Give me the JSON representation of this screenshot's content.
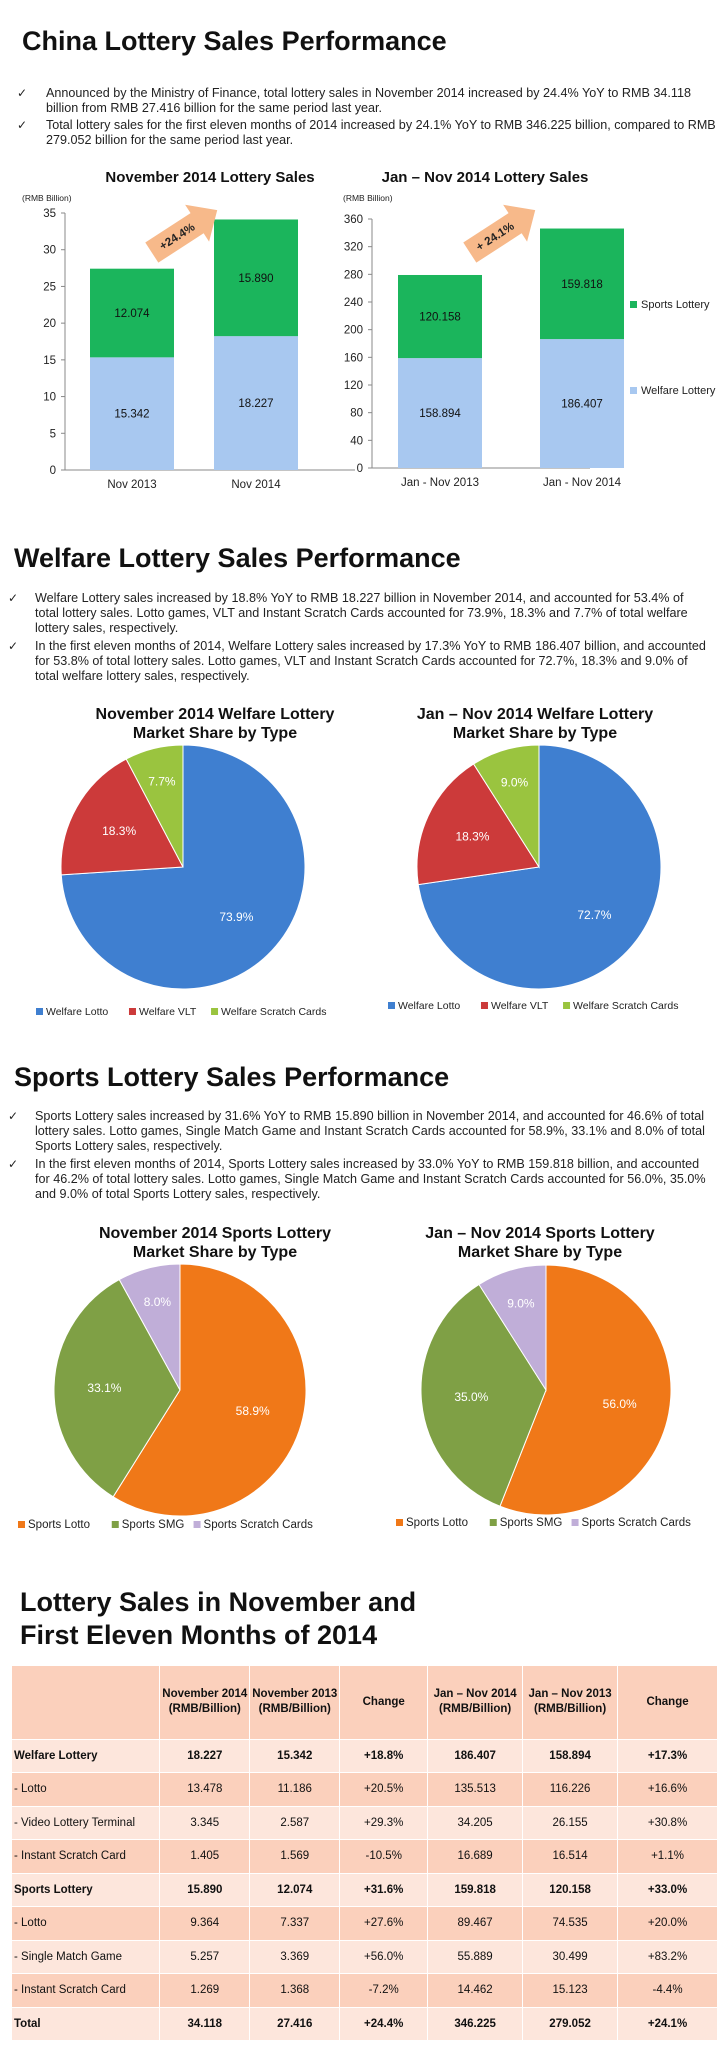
{
  "sec1": {
    "title": "China Lottery Sales Performance",
    "bullets": [
      "Announced by the Ministry of Finance, total lottery sales in November 2014 increased by 24.4% YoY to RMB 34.118 billion from RMB 27.416 billion for the same period last year.",
      "Total lottery sales for the first eleven months of 2014 increased by 24.1% YoY to RMB 346.225 billion, compared to RMB 279.052 billion for the same period last year."
    ]
  },
  "sec2": {
    "title": "Welfare Lottery Sales Performance",
    "bullets": [
      "Welfare Lottery sales increased by 18.8% YoY to RMB 18.227 billion in November 2014, and accounted for 53.4% of total lottery sales. Lotto games, VLT and Instant Scratch Cards accounted for 73.9%, 18.3% and 7.7% of total welfare lottery sales, respectively.",
      "In the first eleven months of 2014, Welfare Lottery sales increased by 17.3% YoY to RMB 186.407 billion, and accounted for 53.8% of total lottery sales. Lotto games, VLT and Instant Scratch Cards accounted for 72.7%, 18.3% and 9.0% of total welfare lottery sales, respectively."
    ]
  },
  "sec3": {
    "title": "Sports Lottery Sales Performance",
    "bullets": [
      "Sports Lottery sales increased by 31.6% YoY to RMB 15.890 billion in November 2014, and accounted for 46.6% of total lottery sales. Lotto games, Single Match Game and Instant Scratch Cards accounted for 58.9%, 33.1% and 8.0% of total Sports Lottery sales, respectively.",
      "In the first eleven months of 2014, Sports Lottery sales increased by 33.0% YoY to RMB 159.818 billion, and accounted for 46.2% of total lottery sales. Lotto games, Single Match Game and Instant Scratch Cards accounted for 56.0%, 35.0% and 9.0% of total Sports Lottery sales, respectively."
    ]
  },
  "sec4": {
    "title_line1": "Lottery Sales in November and",
    "title_line2": "First Eleven Months of 2014"
  },
  "colors": {
    "welfare": "#a8c8f0",
    "sports": "#1bb55c",
    "arrow": "#f7b98a",
    "pie_blue": "#3f7fd0",
    "pie_red": "#cc3a3a",
    "pie_green": "#9ac43f",
    "pie_orange": "#f07818",
    "pie_olive": "#7fa045",
    "pie_lilac": "#c0aed8",
    "table_header": "#fbd0bc",
    "table_light": "#fde6dc"
  },
  "chart_data": [
    {
      "type": "bar",
      "stacked": true,
      "title": "November 2014 Lottery Sales",
      "ylabel": "(RMB Billion)",
      "categories": [
        "Nov 2013",
        "Nov 2014"
      ],
      "series": [
        {
          "name": "Welfare Lottery",
          "values": [
            15.342,
            18.227
          ]
        },
        {
          "name": "Sports Lottery",
          "values": [
            12.074,
            15.89
          ]
        }
      ],
      "value_labels": [
        [
          "15.342",
          "18.227"
        ],
        [
          "12.074",
          "15.890"
        ]
      ],
      "ylim": [
        0,
        35
      ],
      "yticks": [
        "0",
        "5",
        "10",
        "15",
        "20",
        "25",
        "30",
        "35"
      ],
      "annotation": "+24.4%"
    },
    {
      "type": "bar",
      "stacked": true,
      "title": "Jan – Nov 2014 Lottery Sales",
      "ylabel": "(RMB Billion)",
      "categories": [
        "Jan - Nov 2013",
        "Jan - Nov 2014"
      ],
      "series": [
        {
          "name": "Welfare Lottery",
          "values": [
            158.894,
            186.407
          ]
        },
        {
          "name": "Sports Lottery",
          "values": [
            120.158,
            159.818
          ]
        }
      ],
      "value_labels": [
        [
          "158.894",
          "186.407"
        ],
        [
          "120.158",
          "159.818"
        ]
      ],
      "ylim": [
        0,
        360
      ],
      "yticks": [
        "0",
        "40",
        "80",
        "120",
        "160",
        "200",
        "240",
        "280",
        "320",
        "360"
      ],
      "annotation": "+ 24.1%",
      "legend": [
        "Sports Lottery",
        "Welfare Lottery"
      ],
      "legend_position": "right"
    },
    {
      "type": "pie",
      "title": "November 2014 Welfare Lottery Market Share by Type",
      "title_lines": [
        "November 2014 Welfare Lottery",
        "Market Share by Type"
      ],
      "labels": [
        "Welfare Lotto",
        "Welfare VLT",
        "Welfare Scratch Cards"
      ],
      "values": [
        73.9,
        18.3,
        7.7
      ],
      "value_labels": [
        "73.9%",
        "18.3%",
        "7.7%"
      ],
      "legend_position": "bottom"
    },
    {
      "type": "pie",
      "title": "Jan – Nov 2014 Welfare Lottery Market Share by Type",
      "title_lines": [
        "Jan – Nov 2014 Welfare Lottery",
        "Market Share by Type"
      ],
      "labels": [
        "Welfare Lotto",
        "Welfare VLT",
        "Welfare Scratch Cards"
      ],
      "values": [
        72.7,
        18.3,
        9.0
      ],
      "value_labels": [
        "72.7%",
        "18.3%",
        "9.0%"
      ],
      "legend_position": "bottom"
    },
    {
      "type": "pie",
      "title": "November 2014 Sports Lottery Market Share by Type",
      "title_lines": [
        "November 2014 Sports Lottery",
        "Market Share by Type"
      ],
      "labels": [
        "Sports Lotto",
        "Sports SMG",
        "Sports Scratch Cards"
      ],
      "values": [
        58.9,
        33.1,
        8.0
      ],
      "value_labels": [
        "58.9%",
        "33.1%",
        "8.0%"
      ],
      "legend_position": "bottom"
    },
    {
      "type": "pie",
      "title": "Jan – Nov 2014 Sports Lottery Market Share by Type",
      "title_lines": [
        "Jan – Nov 2014 Sports Lottery",
        "Market Share by Type"
      ],
      "labels": [
        "Sports Lotto",
        "Sports SMG",
        "Sports Scratch Cards"
      ],
      "values": [
        56.0,
        35.0,
        9.0
      ],
      "value_labels": [
        "56.0%",
        "35.0%",
        "9.0%"
      ],
      "legend_position": "bottom"
    },
    {
      "type": "table",
      "headers": [
        "",
        "November 2014 (RMB/Billion)",
        "November 2013 (RMB/Billion)",
        "Change",
        "Jan – Nov 2014 (RMB/Billion)",
        "Jan – Nov 2013 (RMB/Billion)",
        "Change"
      ],
      "rows": [
        [
          "Welfare Lottery",
          "18.227",
          "15.342",
          "+18.8%",
          "186.407",
          "158.894",
          "+17.3%"
        ],
        [
          "- Lotto",
          "13.478",
          "11.186",
          "+20.5%",
          "135.513",
          "116.226",
          "+16.6%"
        ],
        [
          "- Video Lottery Terminal",
          "3.345",
          "2.587",
          "+29.3%",
          "34.205",
          "26.155",
          "+30.8%"
        ],
        [
          "- Instant Scratch Card",
          "1.405",
          "1.569",
          "-10.5%",
          "16.689",
          "16.514",
          "+1.1%"
        ],
        [
          "Sports Lottery",
          "15.890",
          "12.074",
          "+31.6%",
          "159.818",
          "120.158",
          "+33.0%"
        ],
        [
          "- Lotto",
          "9.364",
          "7.337",
          "+27.6%",
          "89.467",
          "74.535",
          "+20.0%"
        ],
        [
          "- Single Match Game",
          "5.257",
          "3.369",
          "+56.0%",
          "55.889",
          "30.499",
          "+83.2%"
        ],
        [
          "- Instant Scratch Card",
          "1.269",
          "1.368",
          "-7.2%",
          "14.462",
          "15.123",
          "-4.4%"
        ],
        [
          "Total",
          "34.118",
          "27.416",
          "+24.4%",
          "346.225",
          "279.052",
          "+24.1%"
        ]
      ],
      "bold_rows": [
        0,
        4,
        8
      ]
    }
  ]
}
